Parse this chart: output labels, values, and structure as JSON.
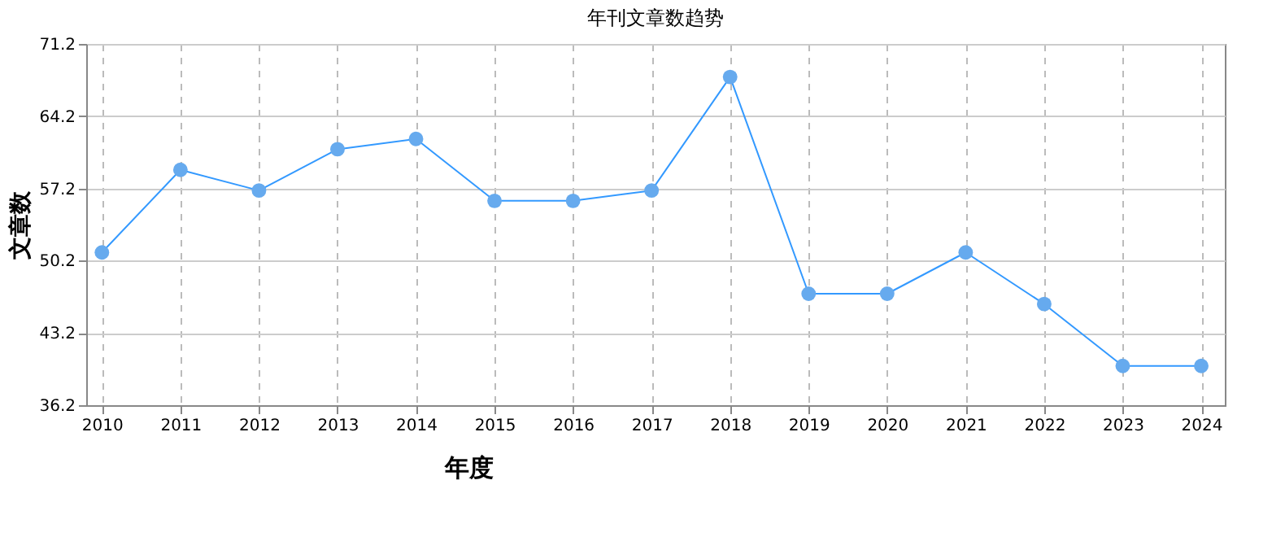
{
  "chart_data": {
    "type": "line",
    "title": "年刊文章数趋势",
    "xlabel": "年度",
    "ylabel": "文章数",
    "x": [
      2010,
      2011,
      2012,
      2013,
      2014,
      2015,
      2016,
      2017,
      2018,
      2019,
      2020,
      2021,
      2022,
      2023,
      2024
    ],
    "series": [
      {
        "color": "#3399ff",
        "values": [
          51,
          59,
          57,
          61,
          62,
          56,
          56,
          57,
          68,
          47,
          47,
          51,
          46,
          40,
          40
        ]
      }
    ],
    "xlim": [
      2009.8,
      2024.3
    ],
    "xticks": [
      2010,
      2011,
      2012,
      2013,
      2014,
      2015,
      2016,
      2017,
      2018,
      2019,
      2020,
      2021,
      2022,
      2023,
      2024
    ],
    "ylim": [
      36.2,
      71.2
    ],
    "yticks": [
      36.2,
      43.2,
      50.2,
      57.2,
      64.2,
      71.2
    ],
    "grid": true,
    "marker": "circle",
    "line_style": "solid"
  }
}
